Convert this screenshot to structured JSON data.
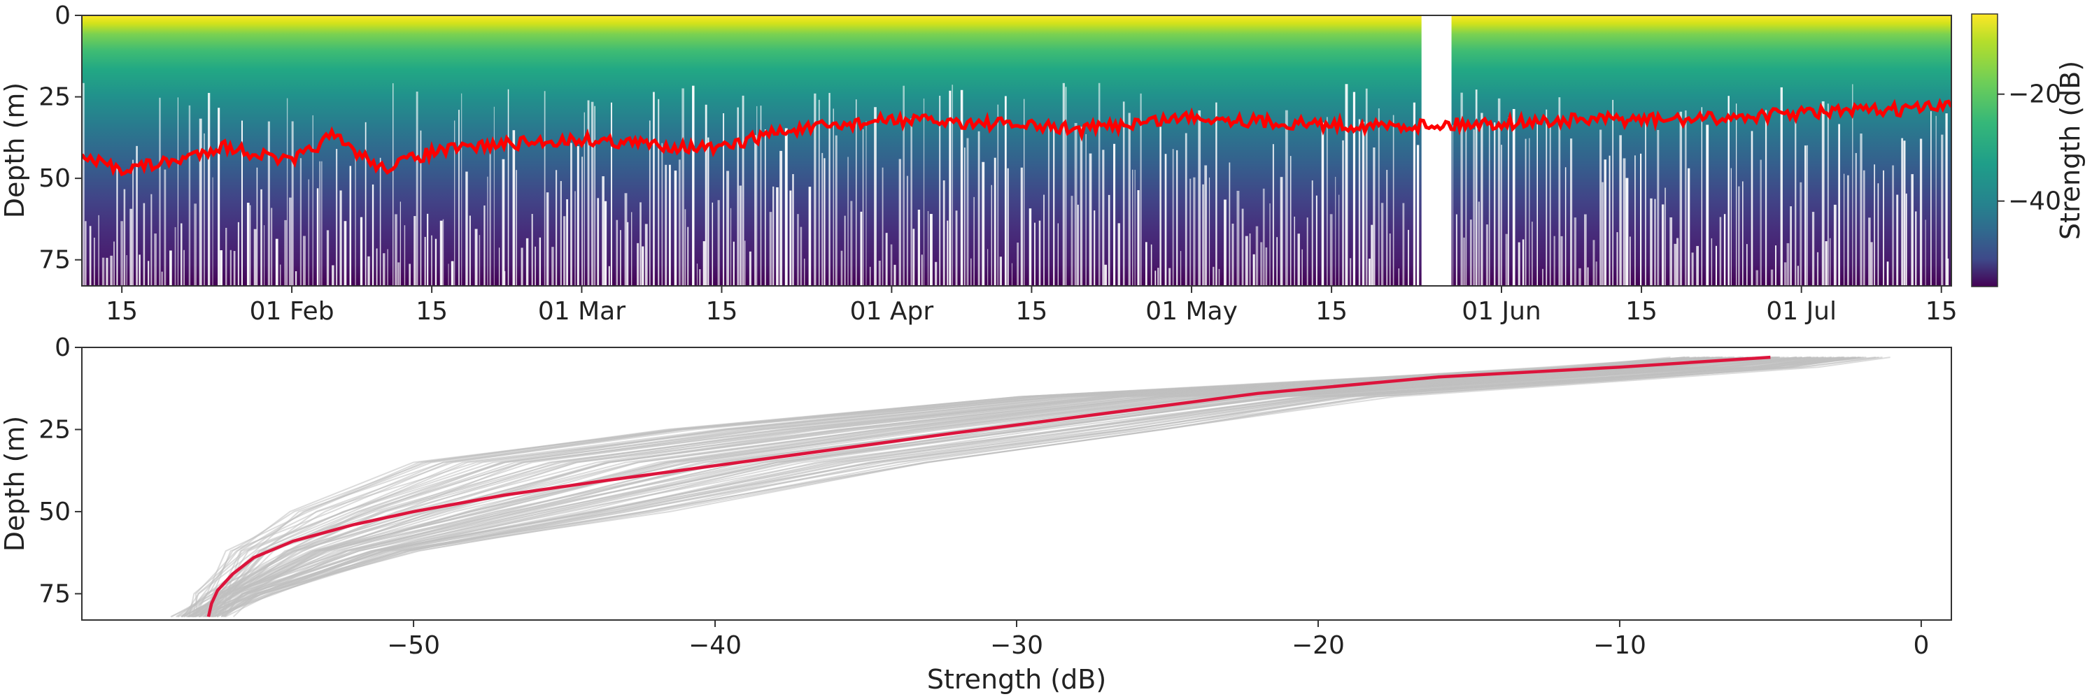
{
  "chart_data": [
    {
      "type": "heatmap",
      "xlabel": "",
      "ylabel": "Depth (m)",
      "x_tick_labels": [
        "15",
        "01 Feb",
        "15",
        "01 Mar",
        "15",
        "01 Apr",
        "15",
        "01 May",
        "15",
        "01 Jun",
        "15",
        "01 Jul",
        "15"
      ],
      "x_tick_dates": [
        "01-15",
        "02-01",
        "02-15",
        "03-01",
        "03-15",
        "04-01",
        "04-15",
        "05-01",
        "05-15",
        "06-01",
        "06-15",
        "07-01",
        "07-15"
      ],
      "xlim_dates": [
        "01-11",
        "07-16"
      ],
      "ylim": [
        83,
        0
      ],
      "y_ticks": [
        0,
        25,
        50,
        75
      ],
      "colorbar": {
        "label": "Strength (dB)",
        "ticks": [
          -20,
          -40
        ],
        "range": [
          -56,
          -5
        ],
        "colormap": "viridis"
      },
      "overlay": {
        "color": "#ff0000",
        "description_series": "bottom/layer depth trace",
        "dates": [
          "01-11",
          "01-15",
          "01-20",
          "01-25",
          "02-01",
          "02-05",
          "02-10",
          "02-15",
          "02-20",
          "03-01",
          "03-10",
          "03-15",
          "03-20",
          "04-01",
          "04-10",
          "04-20",
          "05-01",
          "05-10",
          "05-20",
          "05-25",
          "06-01",
          "06-10",
          "06-20",
          "07-01",
          "07-10",
          "07-16"
        ],
        "depth_m": [
          44,
          47,
          45,
          40,
          45,
          37,
          47,
          42,
          40,
          38,
          40,
          41,
          36,
          32,
          33,
          35,
          31,
          33,
          34,
          null,
          33,
          32,
          32,
          30,
          29,
          28
        ]
      },
      "gaps": [
        [
          "05-24",
          "05-27"
        ]
      ]
    },
    {
      "type": "line",
      "xlabel": "Strength (dB)",
      "ylabel": "Depth (m)",
      "xlim": [
        -61,
        1
      ],
      "ylim": [
        83,
        0
      ],
      "x_ticks": [
        -50,
        -40,
        -30,
        -20,
        -10,
        0
      ],
      "x_tick_labels": [
        "−50",
        "−40",
        "−30",
        "−20",
        "−10",
        "0"
      ],
      "y_ticks": [
        0,
        25,
        50,
        75
      ],
      "series": [
        {
          "role": "mean",
          "color": "#dc143c",
          "x": [
            -5,
            -10,
            -16,
            -22,
            -27,
            -32,
            -36,
            -40,
            -44,
            -47,
            -50,
            -52,
            -54,
            -55.3,
            -56,
            -56.5,
            -56.7,
            -56.8
          ],
          "y": [
            3,
            6,
            9,
            14,
            20,
            26,
            31,
            36,
            41,
            45,
            50,
            54,
            59,
            64,
            69,
            74,
            78,
            82
          ]
        },
        {
          "role": "individual-profiles-envelope",
          "color": "#c0c0c0",
          "x_lower": [
            -8,
            -12,
            -20,
            -30,
            -42,
            -50,
            -54,
            -56,
            -57,
            -57.5
          ],
          "x_upper": [
            -1.5,
            -4,
            -10,
            -18,
            -25,
            -33,
            -42,
            -50,
            -55,
            -56.5
          ],
          "y": [
            3,
            6,
            10,
            15,
            25,
            35,
            50,
            62,
            75,
            82
          ]
        }
      ]
    }
  ]
}
